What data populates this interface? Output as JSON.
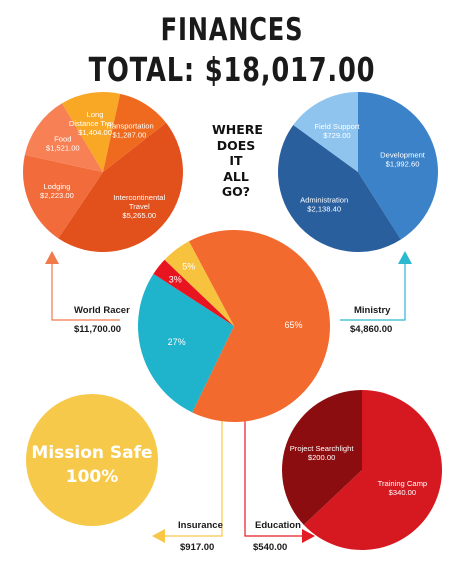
{
  "header": {
    "title": "FINANCES",
    "total_line": "TOTAL: $18,017.00",
    "question": "WHERE\nDOES\nIT\nALL\nGO?"
  },
  "colors": {
    "world_racer": "#f26a2e",
    "ministry": "#1fb3cc",
    "insurance": "#f7c23e",
    "education": "#e8141f",
    "arrow_world_racer": "#f07a4a",
    "arrow_ministry": "#2cb9d0",
    "arrow_insurance": "#f8c74a",
    "arrow_education": "#e31c23"
  },
  "callouts": {
    "world_racer": {
      "label": "World Racer",
      "value": "$11,700.00"
    },
    "ministry": {
      "label": "Ministry",
      "value": "$4,860.00"
    },
    "insurance": {
      "label": "Insurance",
      "value": "$917.00"
    },
    "education": {
      "label": "Education",
      "value": "$540.00"
    }
  },
  "mission_safe": {
    "line1": "Mission Safe",
    "line2": "100%",
    "color": "#f7c94a"
  },
  "chart_data": [
    {
      "id": "main",
      "type": "pie",
      "slices": [
        {
          "name": "World Racer",
          "value": 11700,
          "label": "65%",
          "color": "#f26a2e"
        },
        {
          "name": "Ministry",
          "value": 4860,
          "label": "27%",
          "color": "#1fb3cc"
        },
        {
          "name": "Education",
          "value": 540,
          "label": "3%",
          "color": "#e8141f"
        },
        {
          "name": "Insurance",
          "value": 917,
          "label": "5%",
          "color": "#f7c23e"
        }
      ]
    },
    {
      "id": "world_racer",
      "type": "pie",
      "slices": [
        {
          "name": "Intercontinental Travel",
          "value": 5265,
          "label": [
            "Intercontinental",
            "Travel",
            "$5,265.00"
          ],
          "color": "#e2501c"
        },
        {
          "name": "Lodging",
          "value": 2223,
          "label": [
            "Lodging",
            "$2,223.00"
          ],
          "color": "#f26b3a"
        },
        {
          "name": "Food",
          "value": 1521,
          "label": [
            "Food",
            "$1,521.00"
          ],
          "color": "#f78055"
        },
        {
          "name": "Long Distance Travel",
          "value": 1404,
          "label": [
            "Long",
            "Distance Travel",
            "$1,404.00"
          ],
          "color": "#f9a826"
        },
        {
          "name": "Transportation",
          "value": 1287,
          "label": [
            "Transportation",
            "$1,287.00"
          ],
          "color": "#ef6a1e"
        }
      ]
    },
    {
      "id": "ministry",
      "type": "pie",
      "slices": [
        {
          "name": "Development",
          "value": 1992.6,
          "label": [
            "Development",
            "$1,992.60"
          ],
          "color": "#3b82c9"
        },
        {
          "name": "Administration",
          "value": 2138.4,
          "label": [
            "Administration",
            "$2,138.40"
          ],
          "color": "#2a5f9e"
        },
        {
          "name": "Field Support",
          "value": 729,
          "label": [
            "Field Support",
            "$729.00"
          ],
          "color": "#8fc4ee"
        }
      ]
    },
    {
      "id": "education",
      "type": "pie",
      "slices": [
        {
          "name": "Training Camp",
          "value": 340,
          "label": [
            "Training Camp",
            "$340.00"
          ],
          "color": "#d61921"
        },
        {
          "name": "Project Searchlight",
          "value": 200,
          "label": [
            "Project Searchlight",
            "$200.00"
          ],
          "color": "#8c0d0f"
        }
      ]
    },
    {
      "id": "insurance",
      "type": "pie",
      "slices": [
        {
          "name": "Mission Safe",
          "value": 917,
          "label": [
            "Mission Safe",
            "100%"
          ],
          "color": "#f7c94a"
        }
      ]
    }
  ]
}
